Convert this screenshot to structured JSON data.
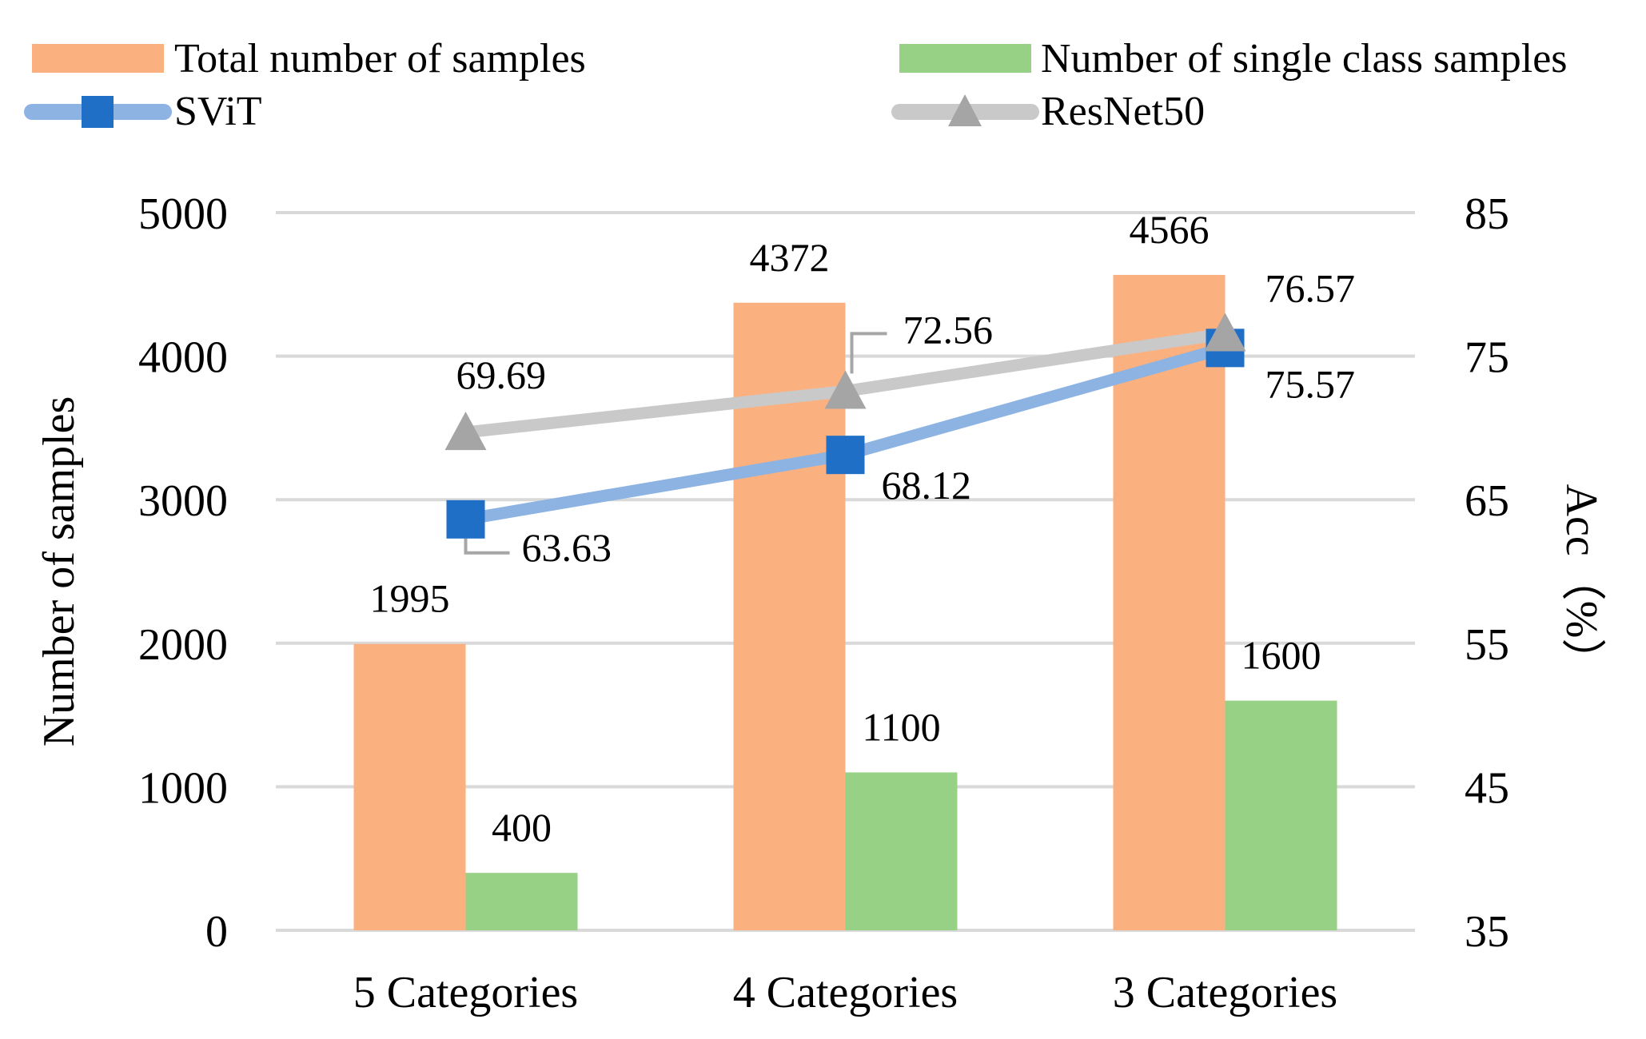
{
  "chart_data": {
    "type": "bar",
    "title": "",
    "categories": [
      "5 Categories",
      "4 Categories",
      "3 Categories"
    ],
    "ylabel": "Number of samples",
    "y2label": "Acc（%）",
    "ylim": [
      0,
      5000
    ],
    "y2lim": [
      35,
      85
    ],
    "yticks": [
      "0",
      "1000",
      "2000",
      "3000",
      "4000",
      "5000"
    ],
    "y2ticks": [
      "35",
      "45",
      "55",
      "65",
      "75",
      "85"
    ],
    "grid": true,
    "legend_position": "top",
    "series": [
      {
        "name": "Total number of samples",
        "kind": "bar",
        "axis": "left",
        "color": "#FBB07F",
        "values": [
          1995,
          4372,
          4566
        ],
        "labels": [
          "1995",
          "4372",
          "4566"
        ]
      },
      {
        "name": "Number of single class samples",
        "kind": "bar",
        "axis": "left",
        "color": "#97D186",
        "values": [
          400,
          1100,
          1600
        ],
        "labels": [
          "400",
          "1100",
          "1600"
        ]
      },
      {
        "name": "SViT",
        "kind": "line",
        "axis": "right",
        "color": "#8DB3E2",
        "marker": "square",
        "marker_color": "#1F6FC7",
        "values": [
          63.63,
          68.12,
          75.57
        ],
        "labels": [
          "63.63",
          "68.12",
          "75.57"
        ]
      },
      {
        "name": "ResNet50",
        "kind": "line",
        "axis": "right",
        "color": "#C9C9C9",
        "marker": "triangle",
        "marker_color": "#A5A5A5",
        "values": [
          69.69,
          72.56,
          76.57
        ],
        "labels": [
          "69.69",
          "72.56",
          "76.57"
        ]
      }
    ]
  }
}
